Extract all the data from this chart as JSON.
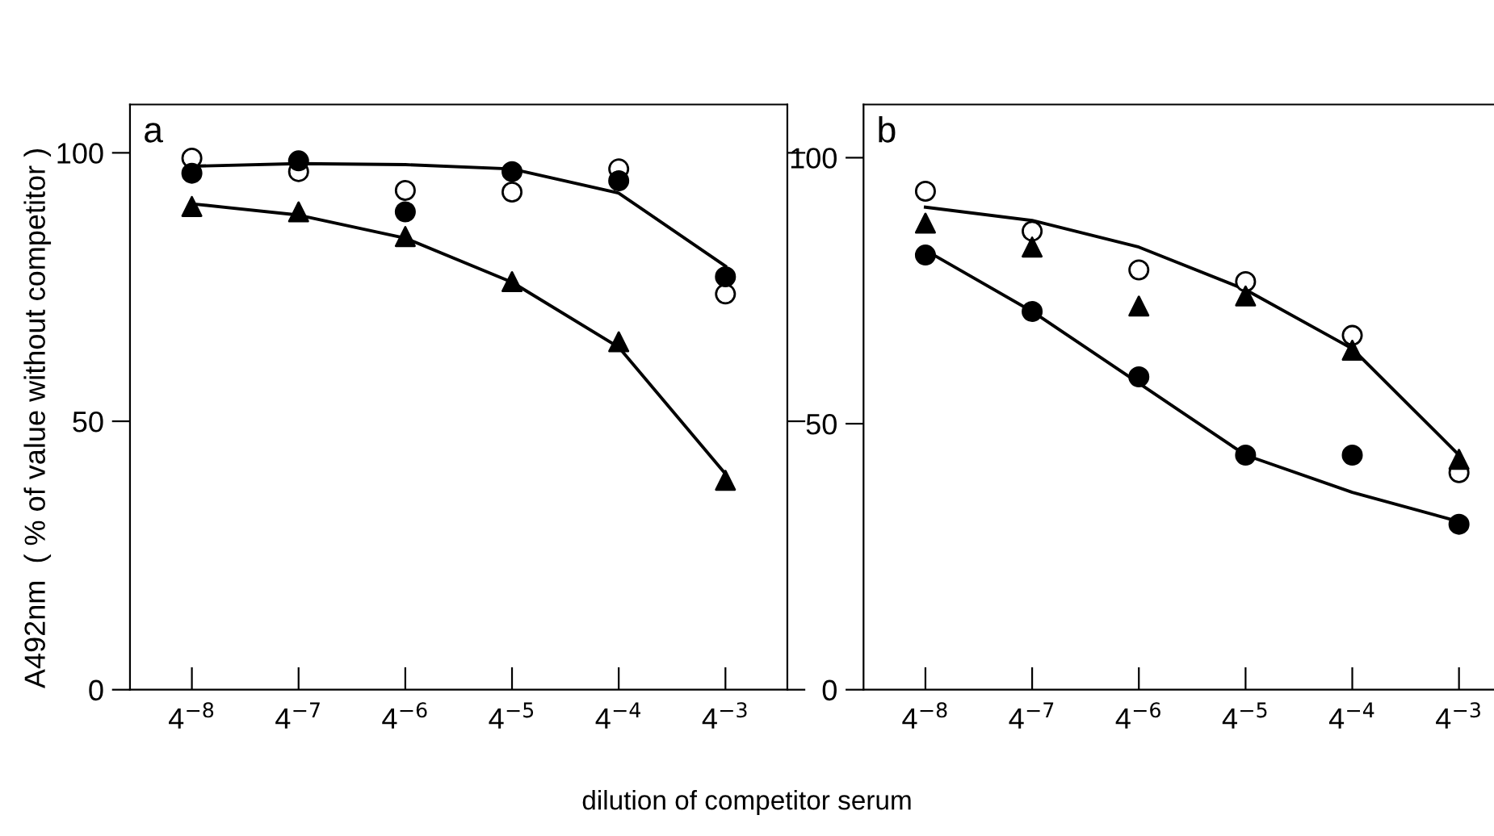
{
  "chart_data": [
    {
      "type": "scatter",
      "title": "a",
      "ylabel": "A492nm  ( % of value without competitor )",
      "xlabel": "dilution of competitor serum",
      "categories": [
        "4$^{−8}$",
        "4$^{−7}$",
        "4$^{−6}$",
        "4$^{−5}$",
        "4$^{−4}$",
        "4$^{−3}$"
      ],
      "ylim": [
        0,
        109
      ],
      "yticks": [
        0,
        50,
        100
      ],
      "grid": false,
      "series": [
        {
          "type": "line",
          "marker": "none",
          "color": "#000000",
          "values": [
            97.5,
            98,
            97.8,
            97,
            92.5,
            78.9
          ]
        },
        {
          "type": "line",
          "marker": "none",
          "color": "#000000",
          "values": [
            90.5,
            88.4,
            84.1,
            75.9,
            63.8,
            40.2
          ]
        },
        {
          "marker": "circle",
          "color": "#ffffff",
          "values": [
            99,
            96.5,
            93,
            92.7,
            97,
            73.7
          ]
        },
        {
          "marker": "circle",
          "color": "#000000",
          "values": [
            96.2,
            98.5,
            89,
            96.5,
            94.8,
            76.9
          ]
        },
        {
          "marker": "triangle",
          "color": "#000000",
          "values": [
            90,
            89,
            84.4,
            76,
            64.8,
            39
          ]
        }
      ]
    },
    {
      "type": "scatter",
      "title": "b",
      "categories": [
        "4$^{−8}$",
        "4$^{−7}$",
        "4$^{−6}$",
        "4$^{−5}$",
        "4$^{−4}$",
        "4$^{−3}$"
      ],
      "ylim": [
        0,
        110
      ],
      "yticks": [
        0,
        50,
        100
      ],
      "grid": false,
      "series": [
        {
          "type": "line",
          "marker": "none",
          "color": "#000000",
          "values": [
            90.7,
            88.2,
            83.2,
            75.2,
            64.1,
            44.1
          ]
        },
        {
          "type": "line",
          "marker": "none",
          "color": "#000000",
          "values": [
            82.6,
            71.1,
            57.6,
            44.1,
            37.1,
            31.6
          ]
        },
        {
          "marker": "circle",
          "color": "#ffffff",
          "values": [
            93.7,
            86.2,
            78.9,
            76.7,
            66.6,
            40.8
          ]
        },
        {
          "marker": "triangle",
          "color": "#000000",
          "values": [
            87.7,
            83.2,
            72.1,
            74,
            63.8,
            43.3
          ]
        },
        {
          "marker": "circle",
          "color": "#000000",
          "values": [
            81.7,
            71.1,
            58.8,
            44.1,
            44.1,
            31.1
          ]
        }
      ]
    }
  ]
}
